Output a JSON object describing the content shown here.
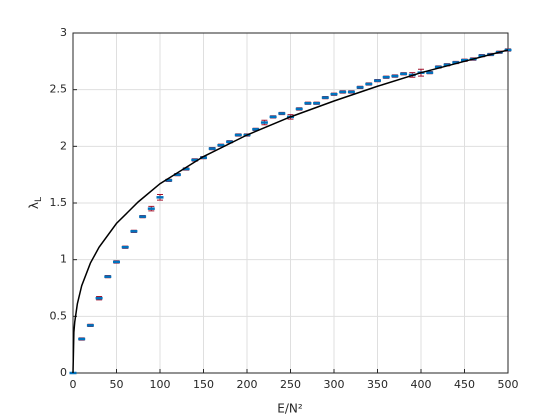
{
  "chart_data": {
    "type": "scatter",
    "xlabel": "E/N²",
    "ylabel": "λ",
    "ylabel_subscript": "L",
    "xlim": [
      0,
      500
    ],
    "xticks": [
      0,
      50,
      100,
      150,
      200,
      250,
      300,
      350,
      400,
      450,
      500
    ],
    "ylim": [
      0,
      3
    ],
    "yticks": [
      0,
      0.5,
      1,
      1.5,
      2,
      2.5,
      3
    ],
    "grid": true,
    "series": [
      {
        "type": "errorbar",
        "color": "#0072bd",
        "error_color": "#a2142f",
        "x": [
          0,
          10,
          20,
          30,
          40,
          50,
          60,
          70,
          80,
          90,
          100,
          110,
          120,
          130,
          140,
          150,
          160,
          170,
          180,
          190,
          200,
          210,
          220,
          230,
          240,
          250,
          260,
          270,
          280,
          290,
          300,
          310,
          320,
          330,
          340,
          350,
          360,
          370,
          380,
          390,
          400,
          410,
          420,
          430,
          440,
          450,
          460,
          470,
          480,
          490,
          500
        ],
        "values": [
          0,
          0.3,
          0.42,
          0.66,
          0.85,
          0.98,
          1.11,
          1.25,
          1.38,
          1.45,
          1.55,
          1.7,
          1.75,
          1.8,
          1.88,
          1.9,
          1.98,
          2.01,
          2.04,
          2.1,
          2.1,
          2.15,
          2.21,
          2.26,
          2.29,
          2.26,
          2.33,
          2.38,
          2.38,
          2.43,
          2.46,
          2.48,
          2.48,
          2.52,
          2.55,
          2.58,
          2.61,
          2.62,
          2.64,
          2.63,
          2.65,
          2.65,
          2.7,
          2.72,
          2.74,
          2.76,
          2.77,
          2.8,
          2.81,
          2.83,
          2.85
        ],
        "errors": [
          0,
          0.01,
          0.01,
          0.015,
          0.01,
          0.01,
          0.01,
          0.01,
          0.01,
          0.02,
          0.025,
          0.01,
          0.01,
          0.01,
          0.01,
          0.01,
          0.01,
          0.01,
          0.01,
          0.01,
          0.01,
          0.01,
          0.02,
          0.01,
          0.01,
          0.02,
          0.01,
          0.01,
          0.01,
          0.01,
          0.01,
          0.01,
          0.01,
          0.01,
          0.01,
          0.01,
          0.01,
          0.01,
          0.01,
          0.02,
          0.03,
          0.01,
          0.01,
          0.01,
          0.01,
          0.01,
          0.01,
          0.01,
          0.01,
          0.01,
          0.01
        ]
      },
      {
        "type": "line",
        "color": "#000000",
        "x": [
          0,
          1,
          2,
          5,
          10,
          20,
          30,
          50,
          75,
          100,
          150,
          200,
          250,
          300,
          350,
          400,
          450,
          500
        ],
        "values": [
          0,
          0.36,
          0.45,
          0.61,
          0.77,
          0.97,
          1.11,
          1.32,
          1.51,
          1.67,
          1.91,
          2.1,
          2.26,
          2.4,
          2.53,
          2.65,
          2.75,
          2.85
        ]
      }
    ]
  }
}
